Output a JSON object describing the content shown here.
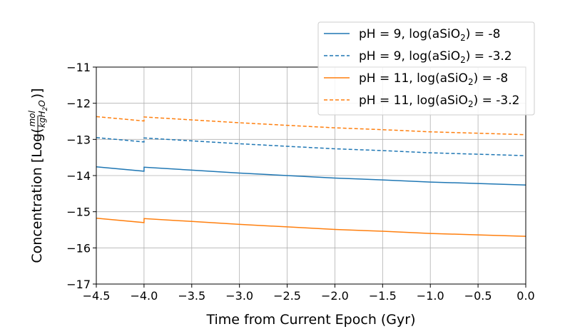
{
  "chart_data": {
    "type": "line",
    "xlabel": "Time from Current Epoch (Gyr)",
    "ylabel": {
      "prefix": "Concentration [Log(",
      "frac_num": "mol",
      "frac_den": "kgH",
      "frac_den_sub": "2",
      "frac_den_tail": "O",
      "suffix": ")]"
    },
    "xlim": [
      -4.5,
      0.0
    ],
    "ylim": [
      -17,
      -11
    ],
    "x_ticks": [
      -4.5,
      -4.0,
      -3.5,
      -3.0,
      -2.5,
      -2.0,
      -1.5,
      -1.0,
      -0.5,
      0.0
    ],
    "x_tick_labels": [
      "−4.5",
      "−4.0",
      "−3.5",
      "−3.0",
      "−2.5",
      "−2.0",
      "−1.5",
      "−1.0",
      "−0.5",
      "0.0"
    ],
    "y_ticks": [
      -11,
      -12,
      -13,
      -14,
      -15,
      -16,
      -17
    ],
    "y_tick_labels": [
      "−11",
      "−12",
      "−13",
      "−14",
      "−15",
      "−16",
      "−17"
    ],
    "grid": true,
    "legend_position": "top-right",
    "series": [
      {
        "name": "pH = 9, log(aSiO2) = -8",
        "legend": {
          "pre": "pH = 9, log(aSiO",
          "sub": "2",
          "post": ") = -8"
        },
        "color": "#1f77b4",
        "dashed": false,
        "points": [
          [
            -4.5,
            -13.76
          ],
          [
            -4.0,
            -13.88
          ],
          [
            -4.0,
            -13.77
          ],
          [
            -3.5,
            -13.85
          ],
          [
            -3.0,
            -13.93
          ],
          [
            -2.5,
            -14.0
          ],
          [
            -2.0,
            -14.07
          ],
          [
            -1.5,
            -14.12
          ],
          [
            -1.0,
            -14.18
          ],
          [
            -0.5,
            -14.22
          ],
          [
            0.0,
            -14.26
          ]
        ]
      },
      {
        "name": "pH = 9, log(aSiO2) = -3.2",
        "legend": {
          "pre": "pH = 9, log(aSiO",
          "sub": "2",
          "post": ") = -3.2"
        },
        "color": "#1f77b4",
        "dashed": true,
        "points": [
          [
            -4.5,
            -12.95
          ],
          [
            -4.0,
            -13.07
          ],
          [
            -4.0,
            -12.96
          ],
          [
            -3.5,
            -13.04
          ],
          [
            -3.0,
            -13.12
          ],
          [
            -2.5,
            -13.19
          ],
          [
            -2.0,
            -13.26
          ],
          [
            -1.5,
            -13.31
          ],
          [
            -1.0,
            -13.37
          ],
          [
            -0.5,
            -13.41
          ],
          [
            0.0,
            -13.45
          ]
        ]
      },
      {
        "name": "pH = 11, log(aSiO2) = -8",
        "legend": {
          "pre": "pH = 11, log(aSiO",
          "sub": "2",
          "post": ") = -8"
        },
        "color": "#ff7f0e",
        "dashed": false,
        "points": [
          [
            -4.5,
            -15.18
          ],
          [
            -4.0,
            -15.3
          ],
          [
            -4.0,
            -15.19
          ],
          [
            -3.5,
            -15.27
          ],
          [
            -3.0,
            -15.35
          ],
          [
            -2.5,
            -15.42
          ],
          [
            -2.0,
            -15.49
          ],
          [
            -1.5,
            -15.54
          ],
          [
            -1.0,
            -15.6
          ],
          [
            -0.5,
            -15.64
          ],
          [
            0.0,
            -15.68
          ]
        ]
      },
      {
        "name": "pH = 11, log(aSiO2) = -3.2",
        "legend": {
          "pre": "pH = 11, log(aSiO",
          "sub": "2",
          "post": ") = -3.2"
        },
        "color": "#ff7f0e",
        "dashed": true,
        "points": [
          [
            -4.5,
            -12.37
          ],
          [
            -4.0,
            -12.49
          ],
          [
            -4.0,
            -12.38
          ],
          [
            -3.5,
            -12.46
          ],
          [
            -3.0,
            -12.54
          ],
          [
            -2.5,
            -12.61
          ],
          [
            -2.0,
            -12.68
          ],
          [
            -1.5,
            -12.73
          ],
          [
            -1.0,
            -12.79
          ],
          [
            -0.5,
            -12.83
          ],
          [
            0.0,
            -12.87
          ]
        ]
      }
    ]
  }
}
